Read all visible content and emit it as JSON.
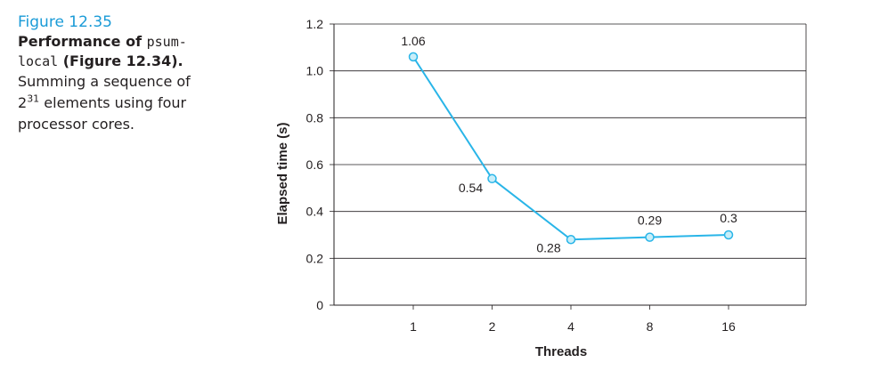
{
  "caption": {
    "figure_label": "Figure 12.35",
    "title_prefix": "Performance of ",
    "title_code": "psum-local",
    "title_code_line1": "psum-",
    "title_code_line2": "local",
    "title_suffix": " (Figure 12.34).",
    "body_part1": "Summing a sequence of",
    "body_base": "2",
    "body_exponent": "31",
    "body_part2": " elements using four",
    "body_part3": "processor cores."
  },
  "chart_data": {
    "type": "line",
    "title": "",
    "xlabel": "Threads",
    "ylabel": "Elapsed time (s)",
    "categories": [
      "1",
      "2",
      "4",
      "8",
      "16"
    ],
    "series": [
      {
        "values": [
          1.06,
          0.54,
          0.28,
          0.29,
          0.3
        ]
      }
    ],
    "data_labels": [
      "1.06",
      "0.54",
      "0.28",
      "0.29",
      "0.3"
    ],
    "yticks": [
      "0",
      "0.2",
      "0.4",
      "0.6",
      "0.8",
      "1.0",
      "1.2"
    ],
    "ylim": [
      0,
      1.2
    ],
    "grid": "horizontal",
    "line_color": "#29b5e8",
    "marker_fill": "#c8eef9"
  }
}
